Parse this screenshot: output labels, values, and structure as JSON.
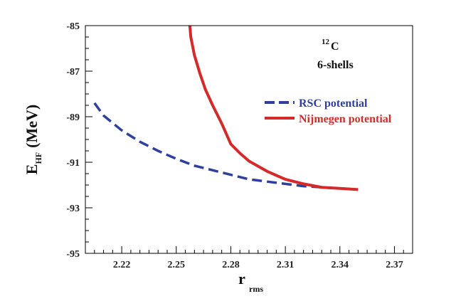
{
  "chart_data": {
    "type": "line",
    "title": "",
    "xlabel": {
      "main": "r",
      "sub": "rms"
    },
    "ylabel": {
      "main": "E",
      "sub": "HF",
      "unit": "(MeV)"
    },
    "xlim": [
      2.2,
      2.38
    ],
    "ylim": [
      -95,
      -85
    ],
    "xticks": [
      2.22,
      2.25,
      2.28,
      2.31,
      2.34,
      2.37
    ],
    "xtick_labels": [
      "2.22",
      "2.25",
      "2.28",
      "2.31",
      "2.34",
      "2.37"
    ],
    "yticks": [
      -85,
      -87,
      -89,
      -91,
      -93,
      -95
    ],
    "ytick_labels": [
      "-85",
      "-87",
      "-89",
      "-91",
      "-93",
      "-95"
    ],
    "annotations": [
      {
        "sup": "12",
        "text": "C"
      },
      {
        "text": "6-shells"
      }
    ],
    "legend_position": "upper-right",
    "series": [
      {
        "name": "RSC potential",
        "style": "dashed",
        "color": "#2e3f9e",
        "x": [
          2.205,
          2.21,
          2.22,
          2.23,
          2.24,
          2.25,
          2.26,
          2.27,
          2.28,
          2.29,
          2.3,
          2.31,
          2.32,
          2.33,
          2.34,
          2.35
        ],
        "y": [
          -88.4,
          -88.95,
          -89.6,
          -90.1,
          -90.5,
          -90.85,
          -91.15,
          -91.35,
          -91.55,
          -91.75,
          -91.85,
          -91.95,
          -92.05,
          -92.1,
          -92.15,
          -92.2
        ]
      },
      {
        "name": "Nijmegen potential",
        "style": "solid",
        "color": "#d42a2a",
        "x": [
          2.257,
          2.258,
          2.26,
          2.263,
          2.266,
          2.27,
          2.275,
          2.28,
          2.285,
          2.29,
          2.3,
          2.31,
          2.32,
          2.33,
          2.34,
          2.35
        ],
        "y": [
          -84.6,
          -85.5,
          -86.3,
          -87.1,
          -87.8,
          -88.5,
          -89.3,
          -90.2,
          -90.6,
          -90.95,
          -91.4,
          -91.75,
          -91.95,
          -92.1,
          -92.15,
          -92.2
        ]
      }
    ]
  }
}
